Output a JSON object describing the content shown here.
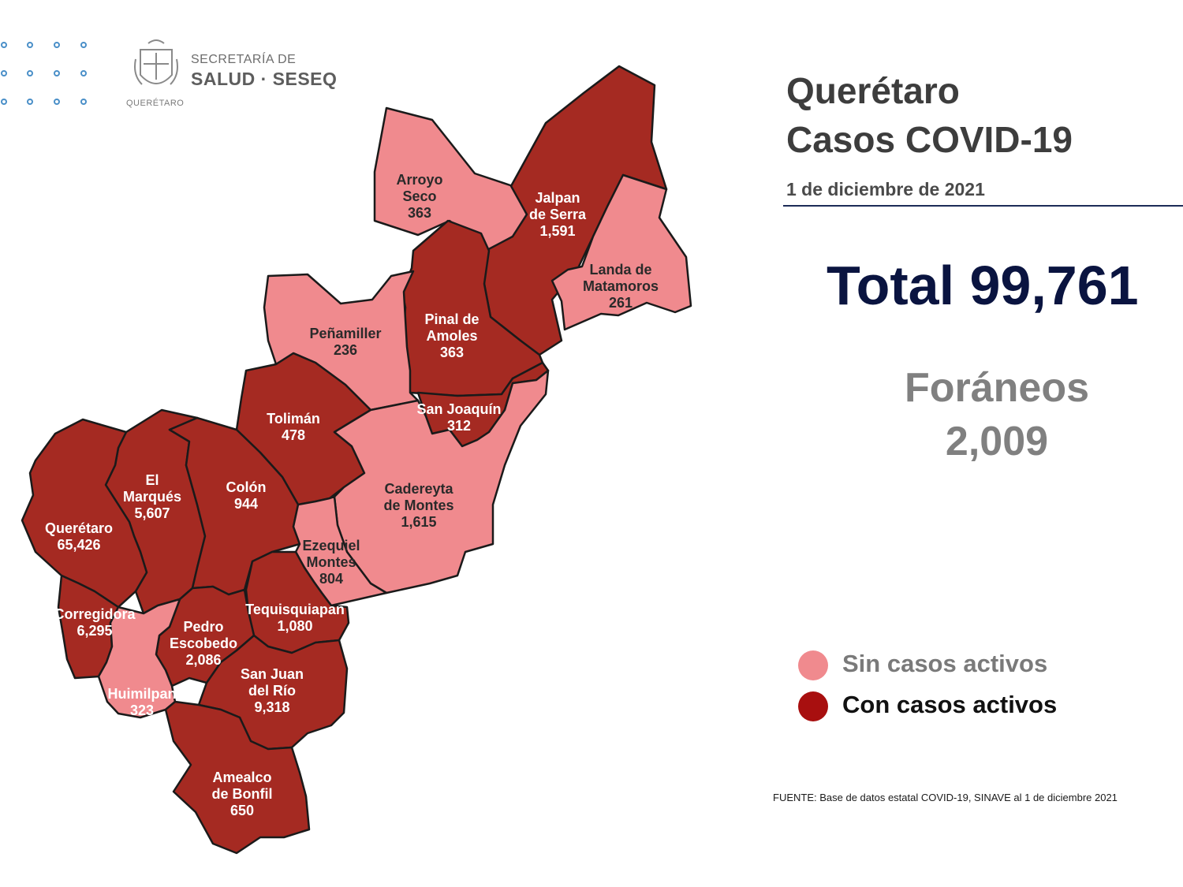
{
  "logo": {
    "line1": "SECRETARÍA DE",
    "line2": "SALUD · SESEQ",
    "state": "QUERÉTARO"
  },
  "header": {
    "title_line1": "Querétaro",
    "title_line2": "Casos COVID-19",
    "date": "1 de diciembre de 2021"
  },
  "summary": {
    "total": "Total 99,761",
    "foraneos_label": "Foráneos",
    "foraneos_value": "2,009"
  },
  "legend": {
    "inactive_label": "Sin casos activos",
    "active_label": "Con casos activos"
  },
  "source": "FUENTE: Base de datos estatal COVID-19, SINAVE al 1 de diciembre 2021",
  "colors": {
    "active": "#a52a22",
    "inactive": "#f08a8e",
    "title": "#3d3d3d",
    "total": "#0a1440",
    "foraneos": "#808080",
    "rule": "#1c2b57"
  },
  "municipalities": [
    {
      "id": "arroyo-seco",
      "name": "Arroyo\nSeco",
      "cases": "363",
      "status": "inactive"
    },
    {
      "id": "jalpan",
      "name": "Jalpan\nde Serra",
      "cases": "1,591",
      "status": "active"
    },
    {
      "id": "landa",
      "name": "Landa de\nMatamoros",
      "cases": "261",
      "status": "inactive"
    },
    {
      "id": "pinal",
      "name": "Pinal de\nAmoles",
      "cases": "363",
      "status": "active"
    },
    {
      "id": "penamiller",
      "name": "Peñamiller",
      "cases": "236",
      "status": "inactive"
    },
    {
      "id": "san-joaquin",
      "name": "San Joaquín",
      "cases": "312",
      "status": "active"
    },
    {
      "id": "toliman",
      "name": "Tolimán",
      "cases": "478",
      "status": "active"
    },
    {
      "id": "cadereyta",
      "name": "Cadereyta\nde Montes",
      "cases": "1,615",
      "status": "inactive"
    },
    {
      "id": "el-marques",
      "name": "El\nMarqués",
      "cases": "5,607",
      "status": "active"
    },
    {
      "id": "colon",
      "name": "Colón",
      "cases": "944",
      "status": "active"
    },
    {
      "id": "queretaro",
      "name": "Querétaro",
      "cases": "65,426",
      "status": "active"
    },
    {
      "id": "ezequiel",
      "name": "Ezequiel\nMontes",
      "cases": "804",
      "status": "inactive"
    },
    {
      "id": "corregidora",
      "name": "Corregidora",
      "cases": "6,295",
      "status": "active"
    },
    {
      "id": "tequisquiapan",
      "name": "Tequisquiapan",
      "cases": "1,080",
      "status": "active"
    },
    {
      "id": "pedro-escobedo",
      "name": "Pedro\nEscobedo",
      "cases": "2,086",
      "status": "active"
    },
    {
      "id": "huimilpan",
      "name": "Huimilpan",
      "cases": "323",
      "status": "inactive"
    },
    {
      "id": "san-juan",
      "name": "San Juan\ndel Río",
      "cases": "9,318",
      "status": "active"
    },
    {
      "id": "amealco",
      "name": "Amealco\nde Bonfil",
      "cases": "650",
      "status": "active"
    }
  ]
}
